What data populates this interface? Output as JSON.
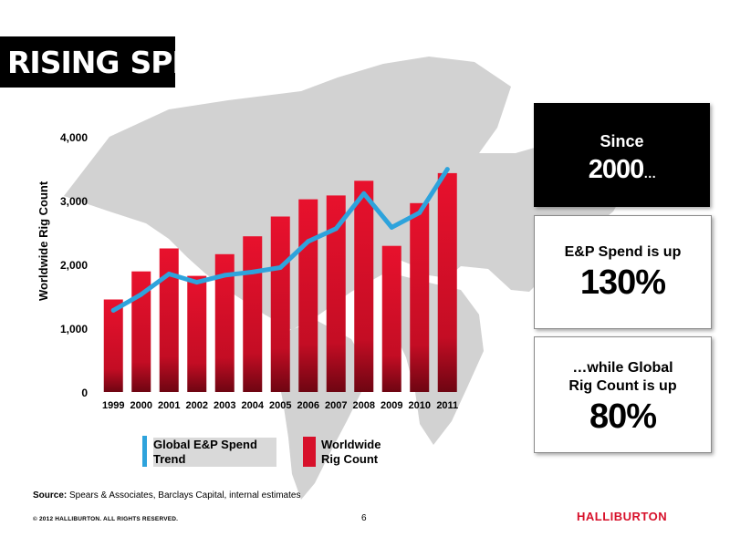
{
  "title": {
    "part1": "RISING",
    "part2": "SPEND"
  },
  "chart_data": {
    "type": "bar",
    "categories": [
      "1999",
      "2000",
      "2001",
      "2002",
      "2003",
      "2004",
      "2005",
      "2006",
      "2007",
      "2008",
      "2009",
      "2010",
      "2011"
    ],
    "series": [
      {
        "name": "Worldwide Rig Count",
        "type": "bar",
        "values": [
          1450,
          1890,
          2250,
          1820,
          2160,
          2440,
          2750,
          3020,
          3080,
          3310,
          2290,
          2960,
          3430
        ]
      },
      {
        "name": "Global E&P Spend Trend",
        "type": "line",
        "values": [
          1280,
          1530,
          1850,
          1720,
          1830,
          1880,
          1950,
          2360,
          2560,
          3110,
          2580,
          2810,
          3490
        ]
      }
    ],
    "ylabel": "Worldwide Rig Count",
    "yticks": [
      "0",
      "1,000",
      "2,000",
      "3,000",
      "4,000"
    ],
    "ylim": [
      0,
      4000
    ],
    "grid": false,
    "legend_position": "bottom",
    "colors": {
      "bar": "#d7102a",
      "line": "#2ea3dc"
    }
  },
  "legend": {
    "line_label": "Global E&P Spend Trend",
    "bar_label": "Worldwide Rig Count"
  },
  "callouts": {
    "since_label": "Since",
    "since_year": "2000",
    "since_suffix": "…",
    "ep_label": "E&P Spend is up",
    "ep_value": "130%",
    "rig_label": "…while Global Rig Count is up",
    "rig_value": "80%"
  },
  "footer": {
    "source_label": "Source:",
    "source_text": " Spears & Associates, Barclays Capital, internal estimates",
    "copyright": "© 2012 HALLIBURTON. ALL RIGHTS RESERVED.",
    "page_number": "6",
    "logo_text": "HALLIBURTON"
  }
}
